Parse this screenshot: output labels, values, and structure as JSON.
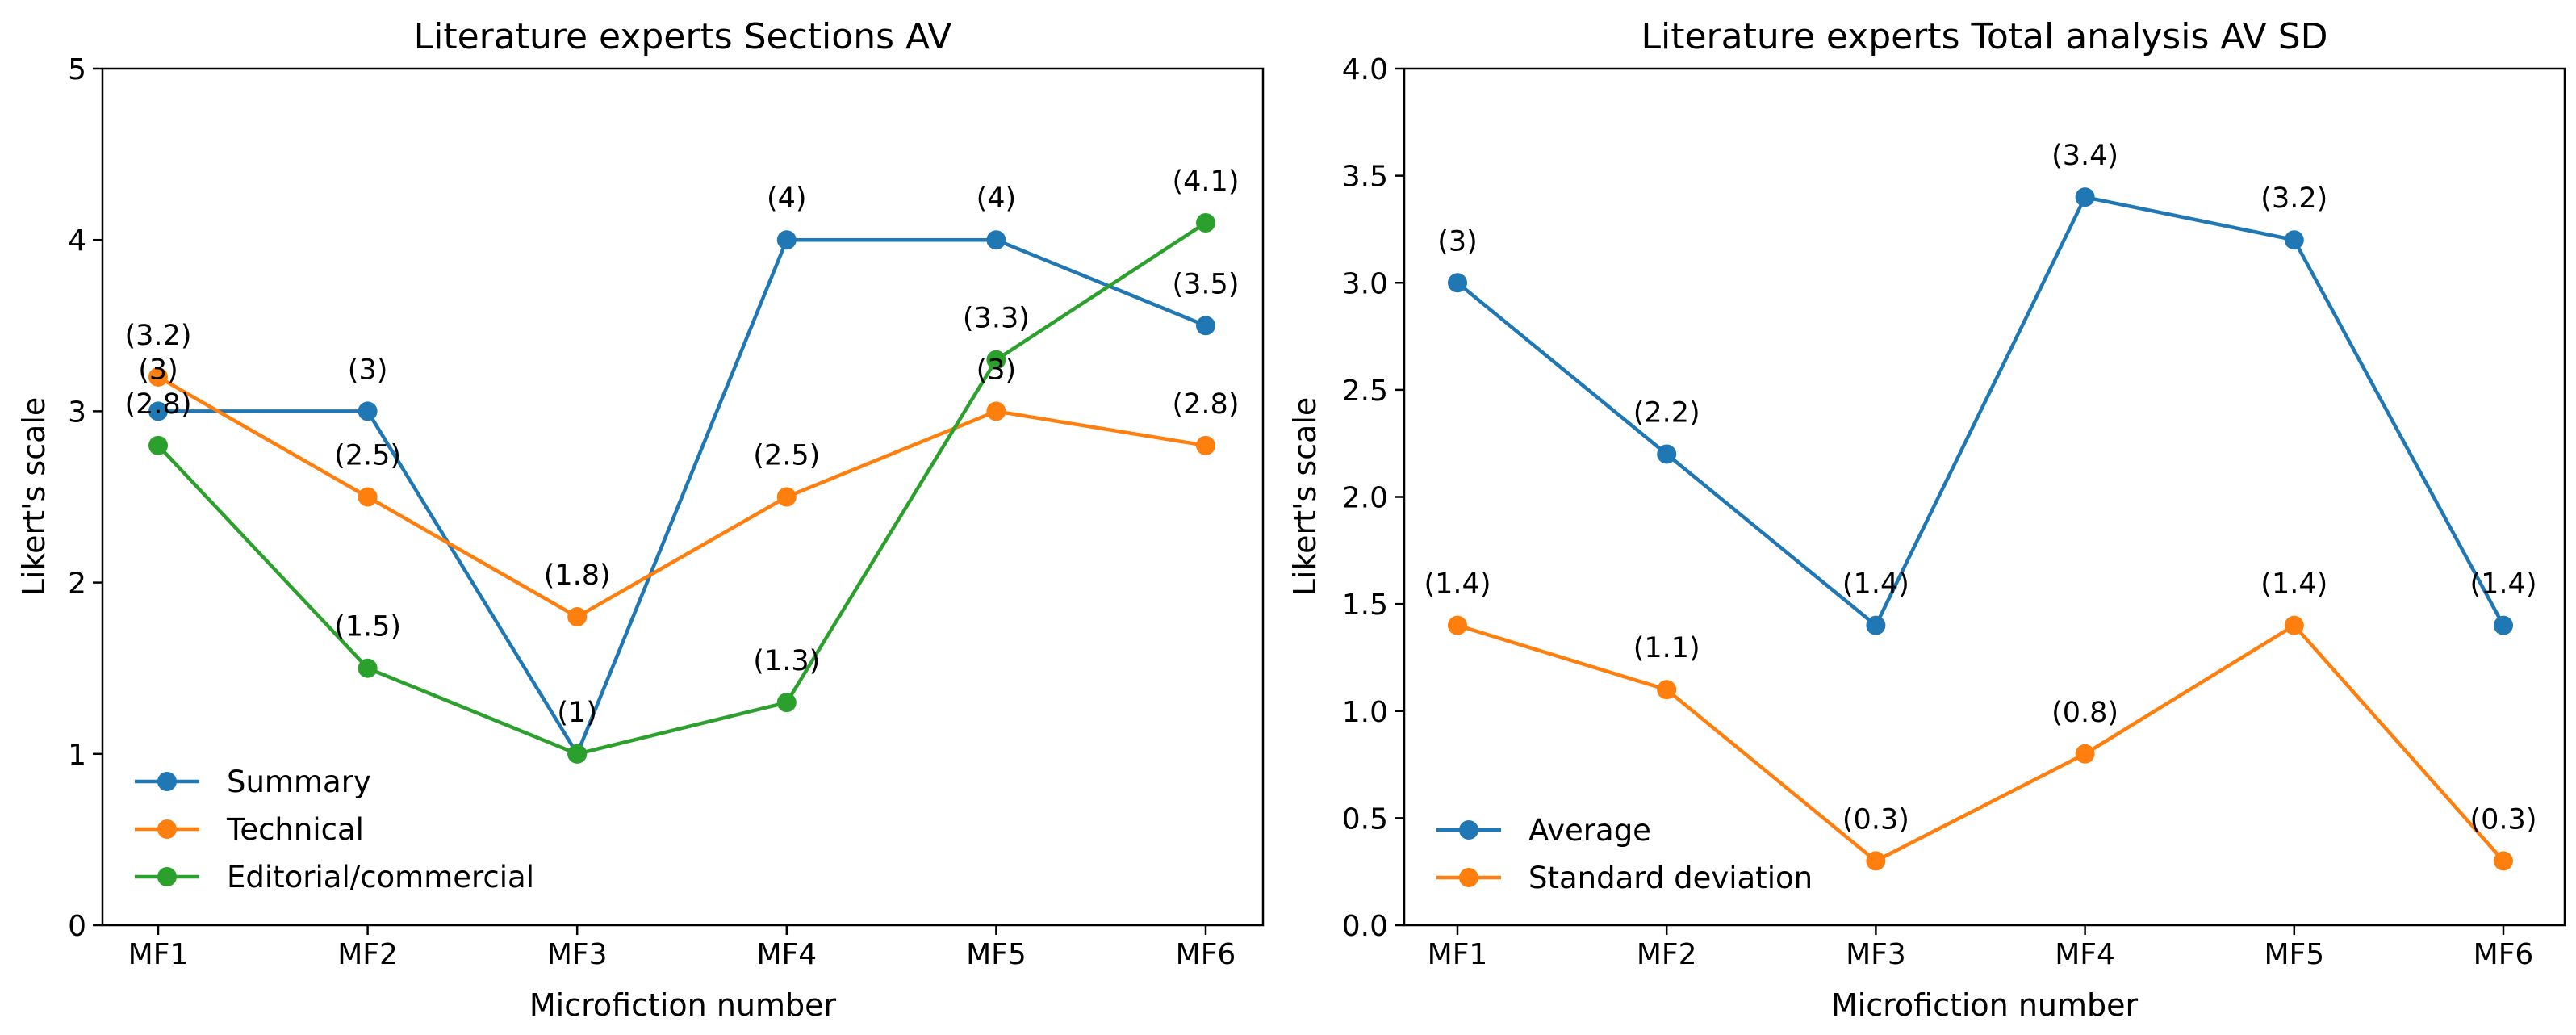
{
  "chart_data": [
    {
      "type": "line",
      "title": "Literature experts Sections AV",
      "xlabel": "Microfiction number",
      "ylabel": "Likert's scale",
      "categories": [
        "MF1",
        "MF2",
        "MF3",
        "MF4",
        "MF5",
        "MF6"
      ],
      "ylim": [
        0,
        5
      ],
      "yticks": [
        "0",
        "1",
        "2",
        "3",
        "4",
        "5"
      ],
      "grid": false,
      "legend_position": "lower-left",
      "series": [
        {
          "name": "Summary",
          "color": "#1f77b4",
          "values": [
            3,
            3,
            1,
            4,
            4,
            3.5
          ],
          "labels": [
            "(3)",
            "(3)",
            "(1)",
            "(4)",
            "(4)",
            "(3.5)"
          ]
        },
        {
          "name": "Technical",
          "color": "#ff7f0e",
          "values": [
            3.2,
            2.5,
            1.8,
            2.5,
            3,
            2.8
          ],
          "labels": [
            "(3.2)",
            "(2.5)",
            "(1.8)",
            "(2.5)",
            "(3)",
            "(2.8)"
          ]
        },
        {
          "name": "Editorial/commercial",
          "color": "#2ca02c",
          "values": [
            2.8,
            1.5,
            1,
            1.3,
            3.3,
            4.1
          ],
          "labels": [
            "(2.8)",
            "(1.5)",
            "(1)",
            "(1.3)",
            "(3.3)",
            "(4.1)"
          ]
        }
      ]
    },
    {
      "type": "line",
      "title": "Literature experts Total analysis AV SD",
      "xlabel": "Microfiction number",
      "ylabel": "Likert's scale",
      "categories": [
        "MF1",
        "MF2",
        "MF3",
        "MF4",
        "MF5",
        "MF6"
      ],
      "ylim": [
        0,
        4
      ],
      "yticks": [
        "0.0",
        "0.5",
        "1.0",
        "1.5",
        "2.0",
        "2.5",
        "3.0",
        "3.5",
        "4.0"
      ],
      "grid": false,
      "legend_position": "lower-left",
      "series": [
        {
          "name": "Average",
          "color": "#1f77b4",
          "values": [
            3,
            2.2,
            1.4,
            3.4,
            3.2,
            1.4
          ],
          "labels": [
            "(3)",
            "(2.2)",
            "(1.4)",
            "(3.4)",
            "(3.2)",
            "(1.4)"
          ]
        },
        {
          "name": "Standard deviation",
          "color": "#ff7f0e",
          "values": [
            1.4,
            1.1,
            0.3,
            0.8,
            1.4,
            0.3
          ],
          "labels": [
            "(1.4)",
            "(1.1)",
            "(0.3)",
            "(0.8)",
            "(1.4)",
            "(0.3)"
          ]
        }
      ]
    }
  ]
}
